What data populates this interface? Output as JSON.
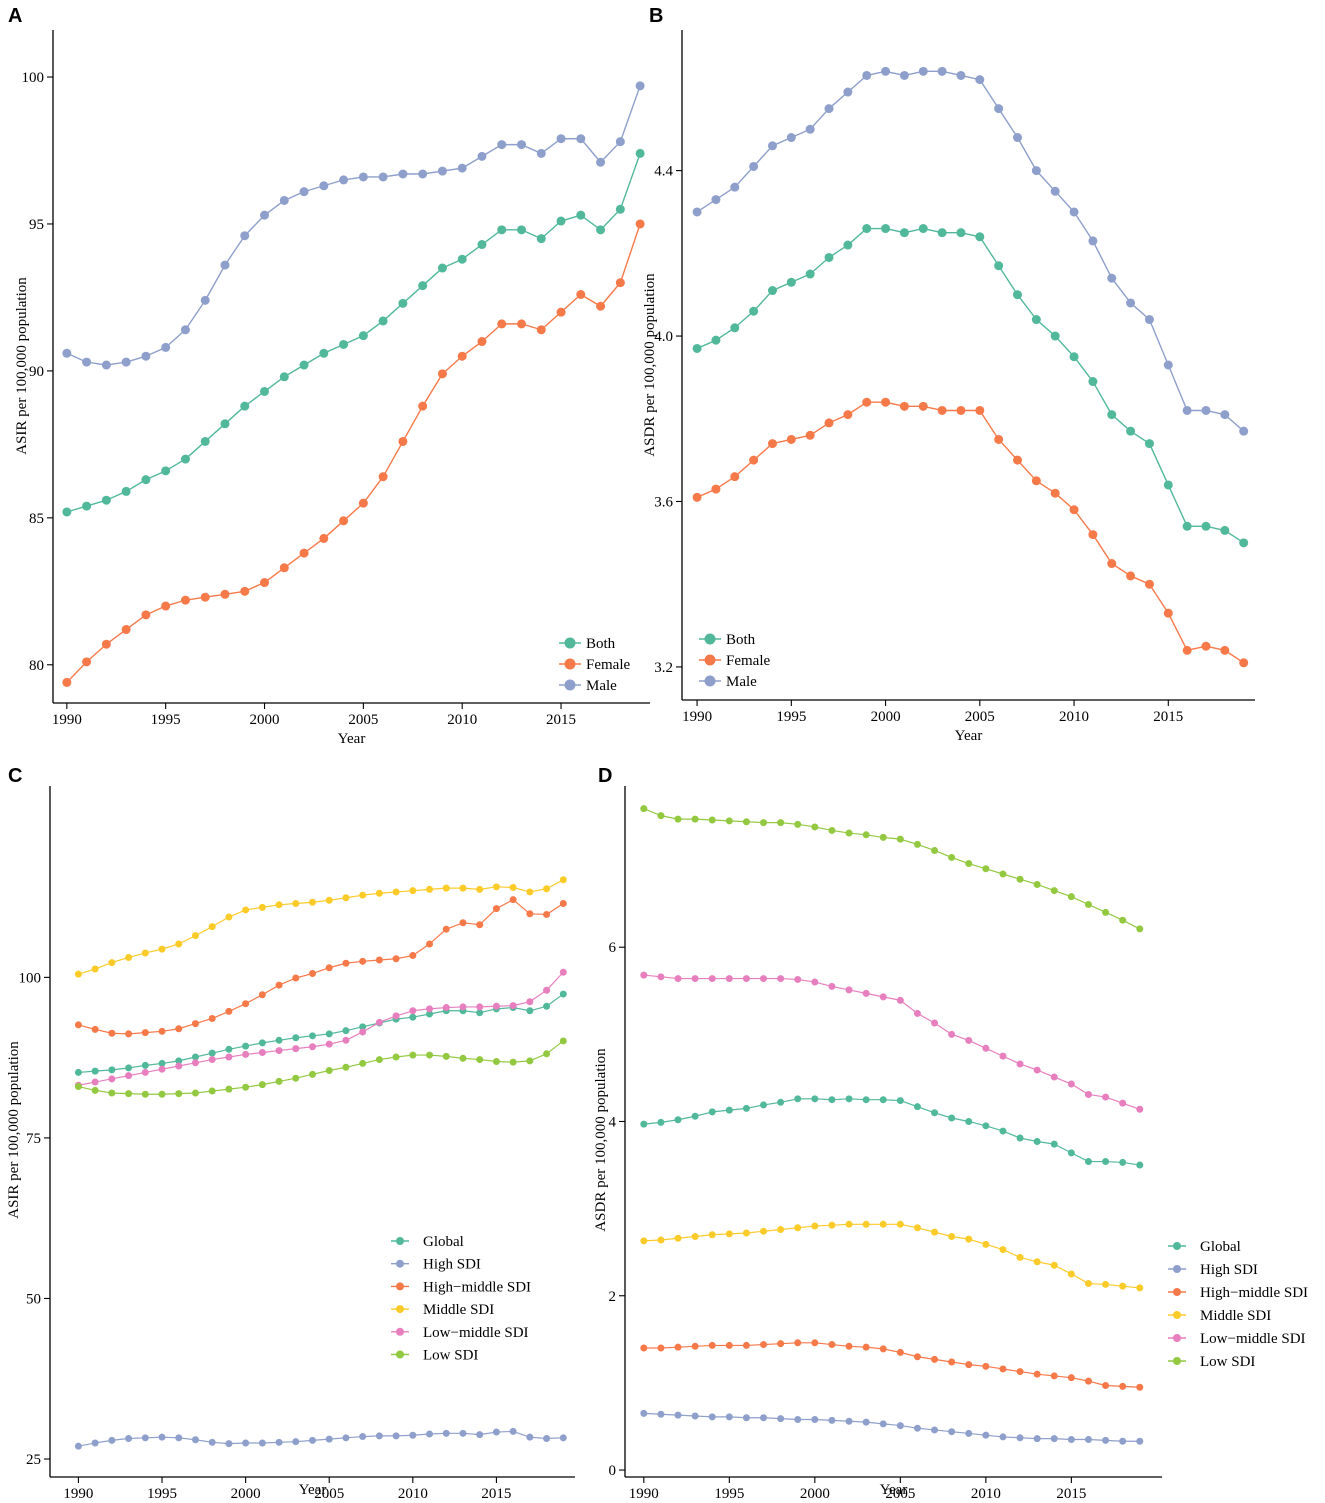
{
  "colors": {
    "Both": "#52b89a",
    "Female": "#f6794a",
    "Male": "#8e9fcb",
    "Global": "#52b89a",
    "High SDI": "#8e9fcb",
    "High−middle SDI": "#f6794a",
    "Middle SDI": "#fbcb2a",
    "Low−middle SDI": "#e77fbf",
    "Low SDI": "#93c940"
  },
  "chart_data": [
    {
      "panel": "A",
      "type": "line",
      "xlabel": "Year",
      "ylabel": "ASIR per 100,000 population",
      "xlim": [
        1989.3,
        2019.5
      ],
      "ylim": [
        78.7,
        101.6
      ],
      "xticks": [
        1990,
        1995,
        2000,
        2005,
        2010,
        2015
      ],
      "yticks": [
        80,
        85,
        90,
        95,
        100
      ],
      "ytick_labels": [
        "80",
        "85",
        "90",
        "95",
        "100"
      ],
      "legend_position": "bottom-right",
      "legend": [
        "Both",
        "Female",
        "Male"
      ],
      "x": [
        1990,
        1991,
        1992,
        1993,
        1994,
        1995,
        1996,
        1997,
        1998,
        1999,
        2000,
        2001,
        2002,
        2003,
        2004,
        2005,
        2006,
        2007,
        2008,
        2009,
        2010,
        2011,
        2012,
        2013,
        2014,
        2015,
        2016,
        2017,
        2018,
        2019
      ],
      "series": [
        {
          "name": "Both",
          "values": [
            85.2,
            85.4,
            85.6,
            85.9,
            86.3,
            86.6,
            87.0,
            87.6,
            88.2,
            88.8,
            89.3,
            89.8,
            90.2,
            90.6,
            90.9,
            91.2,
            91.7,
            92.3,
            92.9,
            93.5,
            93.8,
            94.3,
            94.8,
            94.8,
            94.5,
            95.1,
            95.3,
            94.8,
            95.5,
            97.4
          ]
        },
        {
          "name": "Female",
          "values": [
            79.4,
            80.1,
            80.7,
            81.2,
            81.7,
            82.0,
            82.2,
            82.3,
            82.4,
            82.5,
            82.8,
            83.3,
            83.8,
            84.3,
            84.9,
            85.5,
            86.4,
            87.6,
            88.8,
            89.9,
            90.5,
            91.0,
            91.6,
            91.6,
            91.4,
            92.0,
            92.6,
            92.2,
            93.0,
            95.0
          ]
        },
        {
          "name": "Male",
          "values": [
            90.6,
            90.3,
            90.2,
            90.3,
            90.5,
            90.8,
            91.4,
            92.4,
            93.6,
            94.6,
            95.3,
            95.8,
            96.1,
            96.3,
            96.5,
            96.6,
            96.6,
            96.7,
            96.7,
            96.8,
            96.9,
            97.3,
            97.7,
            97.7,
            97.4,
            97.9,
            97.9,
            97.1,
            97.8,
            99.7
          ]
        }
      ]
    },
    {
      "panel": "B",
      "type": "line",
      "xlabel": "Year",
      "ylabel": "ASDR per 100,000 population",
      "xlim": [
        1989.2,
        2019.6
      ],
      "ylim": [
        3.12,
        4.74
      ],
      "xticks": [
        1990,
        1995,
        2000,
        2005,
        2010,
        2015
      ],
      "yticks": [
        3.2,
        3.6,
        4.0,
        4.4
      ],
      "ytick_labels": [
        "3.2",
        "3.6",
        "4.0",
        "4.4"
      ],
      "legend_position": "bottom-left",
      "legend": [
        "Both",
        "Female",
        "Male"
      ],
      "x": [
        1990,
        1991,
        1992,
        1993,
        1994,
        1995,
        1996,
        1997,
        1998,
        1999,
        2000,
        2001,
        2002,
        2003,
        2004,
        2005,
        2006,
        2007,
        2008,
        2009,
        2010,
        2011,
        2012,
        2013,
        2014,
        2015,
        2016,
        2017,
        2018,
        2019
      ],
      "series": [
        {
          "name": "Both",
          "values": [
            3.97,
            3.99,
            4.02,
            4.06,
            4.11,
            4.13,
            4.15,
            4.19,
            4.22,
            4.26,
            4.26,
            4.25,
            4.26,
            4.25,
            4.25,
            4.24,
            4.17,
            4.1,
            4.04,
            4.0,
            3.95,
            3.89,
            3.81,
            3.77,
            3.74,
            3.64,
            3.54,
            3.54,
            3.53,
            3.5
          ]
        },
        {
          "name": "Female",
          "values": [
            3.61,
            3.63,
            3.66,
            3.7,
            3.74,
            3.75,
            3.76,
            3.79,
            3.81,
            3.84,
            3.84,
            3.83,
            3.83,
            3.82,
            3.82,
            3.82,
            3.75,
            3.7,
            3.65,
            3.62,
            3.58,
            3.52,
            3.45,
            3.42,
            3.4,
            3.33,
            3.24,
            3.25,
            3.24,
            3.21
          ]
        },
        {
          "name": "Male",
          "values": [
            4.3,
            4.33,
            4.36,
            4.41,
            4.46,
            4.48,
            4.5,
            4.55,
            4.59,
            4.63,
            4.64,
            4.63,
            4.64,
            4.64,
            4.63,
            4.62,
            4.55,
            4.48,
            4.4,
            4.35,
            4.3,
            4.23,
            4.14,
            4.08,
            4.04,
            3.93,
            3.82,
            3.82,
            3.81,
            3.77
          ]
        }
      ]
    },
    {
      "panel": "C",
      "type": "line",
      "xlabel": "Year",
      "ylabel": "ASIR per 100,000 population",
      "xlim": [
        1988.3,
        2019.7
      ],
      "ylim": [
        22.2,
        129.8
      ],
      "xticks": [
        1990,
        1995,
        2000,
        2005,
        2010,
        2015
      ],
      "yticks": [
        25,
        50,
        75,
        100
      ],
      "ytick_labels": [
        "25",
        "50",
        "75",
        "100"
      ],
      "legend_position": "right",
      "legend": [
        "Global",
        "High SDI",
        "High−middle SDI",
        "Middle SDI",
        "Low−middle SDI",
        "Low SDI"
      ],
      "x": [
        1990,
        1991,
        1992,
        1993,
        1994,
        1995,
        1996,
        1997,
        1998,
        1999,
        2000,
        2001,
        2002,
        2003,
        2004,
        2005,
        2006,
        2007,
        2008,
        2009,
        2010,
        2011,
        2012,
        2013,
        2014,
        2015,
        2016,
        2017,
        2018,
        2019
      ],
      "series": [
        {
          "name": "Global",
          "values": [
            85.2,
            85.4,
            85.6,
            85.9,
            86.3,
            86.6,
            87.0,
            87.6,
            88.2,
            88.8,
            89.3,
            89.8,
            90.2,
            90.6,
            90.9,
            91.2,
            91.7,
            92.3,
            92.9,
            93.5,
            93.8,
            94.3,
            94.8,
            94.8,
            94.5,
            95.1,
            95.3,
            94.8,
            95.5,
            97.4
          ]
        },
        {
          "name": "High SDI",
          "values": [
            27.0,
            27.5,
            27.9,
            28.2,
            28.3,
            28.4,
            28.3,
            28.0,
            27.6,
            27.4,
            27.5,
            27.5,
            27.6,
            27.7,
            27.9,
            28.1,
            28.3,
            28.5,
            28.6,
            28.6,
            28.7,
            28.9,
            29.0,
            29.0,
            28.8,
            29.2,
            29.3,
            28.4,
            28.2,
            28.3
          ]
        },
        {
          "name": "High−middle SDI",
          "values": [
            92.6,
            91.9,
            91.3,
            91.2,
            91.4,
            91.6,
            92.0,
            92.8,
            93.6,
            94.7,
            95.9,
            97.3,
            98.8,
            99.9,
            100.6,
            101.5,
            102.2,
            102.5,
            102.7,
            102.9,
            103.4,
            105.2,
            107.5,
            108.5,
            108.2,
            110.7,
            112.1,
            109.9,
            109.8,
            111.5
          ]
        },
        {
          "name": "Middle SDI",
          "values": [
            100.5,
            101.3,
            102.3,
            103.1,
            103.8,
            104.4,
            105.2,
            106.5,
            107.9,
            109.4,
            110.5,
            110.9,
            111.3,
            111.5,
            111.7,
            112.0,
            112.4,
            112.8,
            113.1,
            113.3,
            113.5,
            113.7,
            113.9,
            113.9,
            113.7,
            114.1,
            114.0,
            113.3,
            113.8,
            115.2
          ]
        },
        {
          "name": "Low−middle SDI",
          "values": [
            83.2,
            83.7,
            84.2,
            84.7,
            85.2,
            85.7,
            86.2,
            86.7,
            87.2,
            87.6,
            88.0,
            88.3,
            88.6,
            88.9,
            89.2,
            89.6,
            90.2,
            91.5,
            93.0,
            94.0,
            94.8,
            95.1,
            95.3,
            95.4,
            95.4,
            95.5,
            95.6,
            96.2,
            98.0,
            100.8
          ]
        },
        {
          "name": "Low SDI",
          "values": [
            83.0,
            82.4,
            82.0,
            81.9,
            81.8,
            81.8,
            81.9,
            82.0,
            82.3,
            82.6,
            82.9,
            83.3,
            83.8,
            84.3,
            84.9,
            85.5,
            86.0,
            86.6,
            87.2,
            87.6,
            87.9,
            87.9,
            87.7,
            87.4,
            87.2,
            86.9,
            86.8,
            87.0,
            88.1,
            90.1
          ]
        }
      ]
    },
    {
      "panel": "D",
      "type": "line",
      "xlabel": "Year",
      "ylabel": "ASDR per 100,000 population",
      "xlim": [
        1988.9,
        2020.3
      ],
      "ylim": [
        -0.08,
        7.85
      ],
      "xticks": [
        1990,
        1995,
        2000,
        2005,
        2010,
        2015
      ],
      "yticks": [
        0,
        2,
        4,
        6
      ],
      "ytick_labels": [
        "0",
        "2",
        "4",
        "6"
      ],
      "legend_position": "right",
      "legend": [
        "Global",
        "High SDI",
        "High−middle SDI",
        "Middle SDI",
        "Low−middle SDI",
        "Low SDI"
      ],
      "x": [
        1990,
        1991,
        1992,
        1993,
        1994,
        1995,
        1996,
        1997,
        1998,
        1999,
        2000,
        2001,
        2002,
        2003,
        2004,
        2005,
        2006,
        2007,
        2008,
        2009,
        2010,
        2011,
        2012,
        2013,
        2014,
        2015,
        2016,
        2017,
        2018,
        2019
      ],
      "series": [
        {
          "name": "Global",
          "values": [
            3.97,
            3.99,
            4.02,
            4.06,
            4.11,
            4.13,
            4.15,
            4.19,
            4.22,
            4.26,
            4.26,
            4.25,
            4.26,
            4.25,
            4.25,
            4.24,
            4.17,
            4.1,
            4.04,
            4.0,
            3.95,
            3.89,
            3.81,
            3.77,
            3.74,
            3.64,
            3.54,
            3.54,
            3.53,
            3.5
          ]
        },
        {
          "name": "High SDI",
          "values": [
            0.65,
            0.64,
            0.63,
            0.62,
            0.61,
            0.61,
            0.6,
            0.6,
            0.59,
            0.58,
            0.58,
            0.57,
            0.56,
            0.55,
            0.53,
            0.51,
            0.48,
            0.46,
            0.44,
            0.42,
            0.4,
            0.38,
            0.37,
            0.36,
            0.36,
            0.35,
            0.35,
            0.34,
            0.33,
            0.33
          ]
        },
        {
          "name": "High−middle SDI",
          "values": [
            1.4,
            1.4,
            1.41,
            1.42,
            1.43,
            1.43,
            1.43,
            1.44,
            1.45,
            1.46,
            1.46,
            1.44,
            1.42,
            1.41,
            1.39,
            1.35,
            1.3,
            1.27,
            1.24,
            1.21,
            1.19,
            1.16,
            1.13,
            1.1,
            1.08,
            1.06,
            1.02,
            0.97,
            0.96,
            0.95
          ]
        },
        {
          "name": "Middle SDI",
          "values": [
            2.63,
            2.64,
            2.66,
            2.68,
            2.7,
            2.71,
            2.72,
            2.74,
            2.76,
            2.78,
            2.8,
            2.81,
            2.82,
            2.82,
            2.82,
            2.82,
            2.78,
            2.73,
            2.68,
            2.65,
            2.59,
            2.53,
            2.44,
            2.39,
            2.35,
            2.25,
            2.14,
            2.13,
            2.11,
            2.09
          ]
        },
        {
          "name": "Low−middle SDI",
          "values": [
            5.68,
            5.66,
            5.64,
            5.64,
            5.64,
            5.64,
            5.64,
            5.64,
            5.64,
            5.63,
            5.6,
            5.55,
            5.51,
            5.47,
            5.43,
            5.39,
            5.24,
            5.13,
            5.0,
            4.93,
            4.84,
            4.75,
            4.66,
            4.59,
            4.51,
            4.43,
            4.31,
            4.28,
            4.21,
            4.14
          ]
        },
        {
          "name": "Low SDI",
          "values": [
            7.59,
            7.51,
            7.47,
            7.47,
            7.46,
            7.45,
            7.44,
            7.43,
            7.43,
            7.41,
            7.38,
            7.34,
            7.31,
            7.29,
            7.26,
            7.24,
            7.18,
            7.11,
            7.03,
            6.96,
            6.9,
            6.84,
            6.78,
            6.72,
            6.65,
            6.58,
            6.49,
            6.4,
            6.31,
            6.21
          ]
        }
      ]
    }
  ]
}
